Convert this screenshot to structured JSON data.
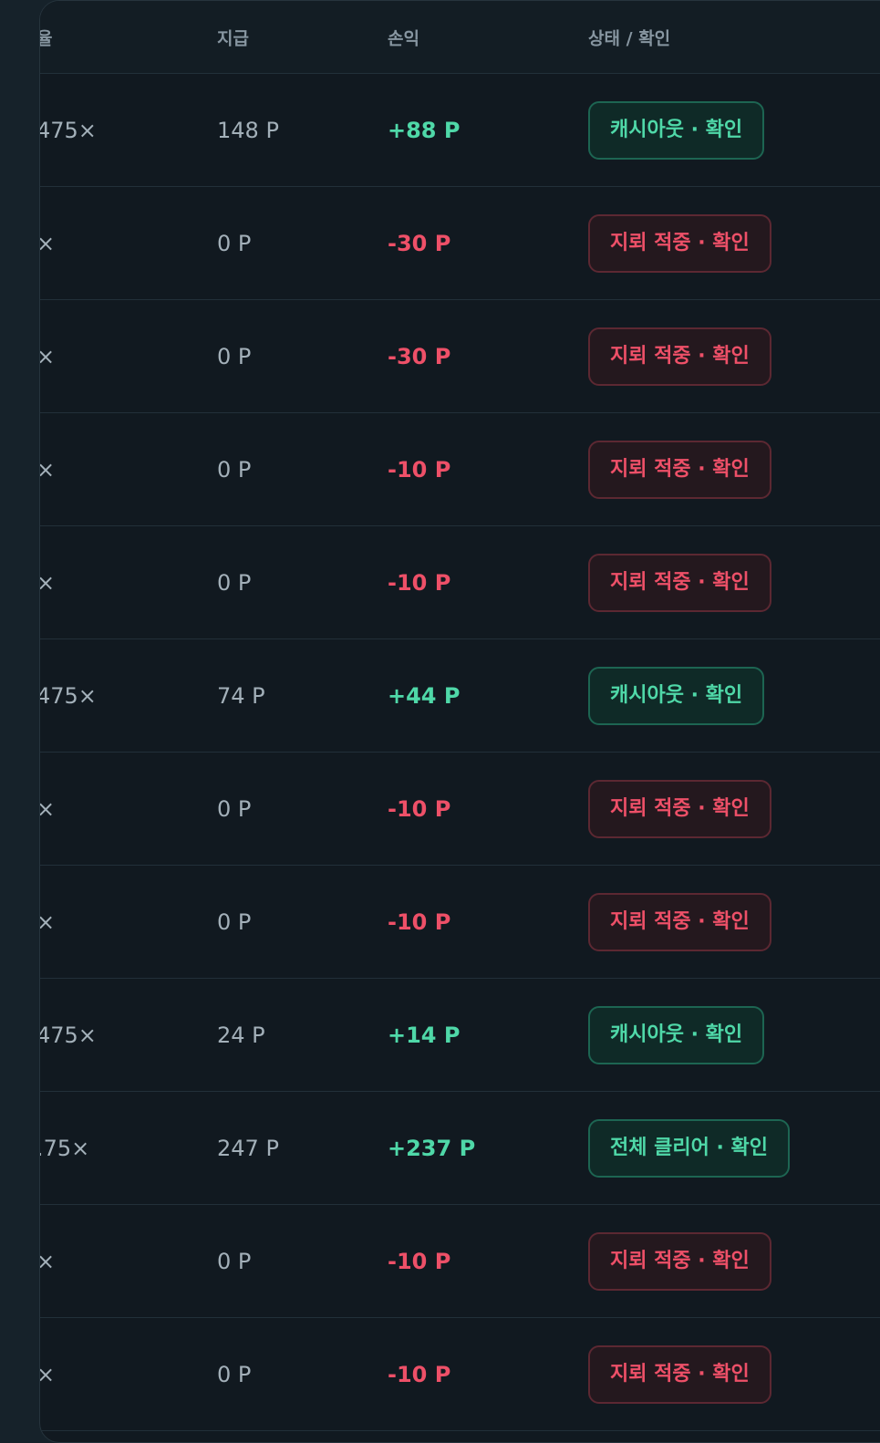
{
  "table": {
    "headers": [
      "율",
      "지급",
      "손익",
      "상태 / 확인"
    ],
    "rows": [
      [
        "475×",
        "148 P",
        "+88 P",
        "캐시아웃 · 확인"
      ],
      [
        "×",
        "0 P",
        "-30 P",
        "지뢰 적중 · 확인"
      ],
      [
        "×",
        "0 P",
        "-30 P",
        "지뢰 적중 · 확인"
      ],
      [
        "×",
        "0 P",
        "-10 P",
        "지뢰 적중 · 확인"
      ],
      [
        "×",
        "0 P",
        "-10 P",
        "지뢰 적중 · 확인"
      ],
      [
        "475×",
        "74 P",
        "+44 P",
        "캐시아웃 · 확인"
      ],
      [
        "×",
        "0 P",
        "-10 P",
        "지뢰 적중 · 확인"
      ],
      [
        "×",
        "0 P",
        "-10 P",
        "지뢰 적중 · 확인"
      ],
      [
        "475×",
        "24 P",
        "+14 P",
        "캐시아웃 · 확인"
      ],
      [
        ".75×",
        "247 P",
        "+237 P",
        "전체 클리어 · 확인"
      ],
      [
        "×",
        "0 P",
        "-10 P",
        "지뢰 적중 · 확인"
      ],
      [
        "×",
        "0 P",
        "-10 P",
        "지뢰 적중 · 확인"
      ]
    ]
  }
}
